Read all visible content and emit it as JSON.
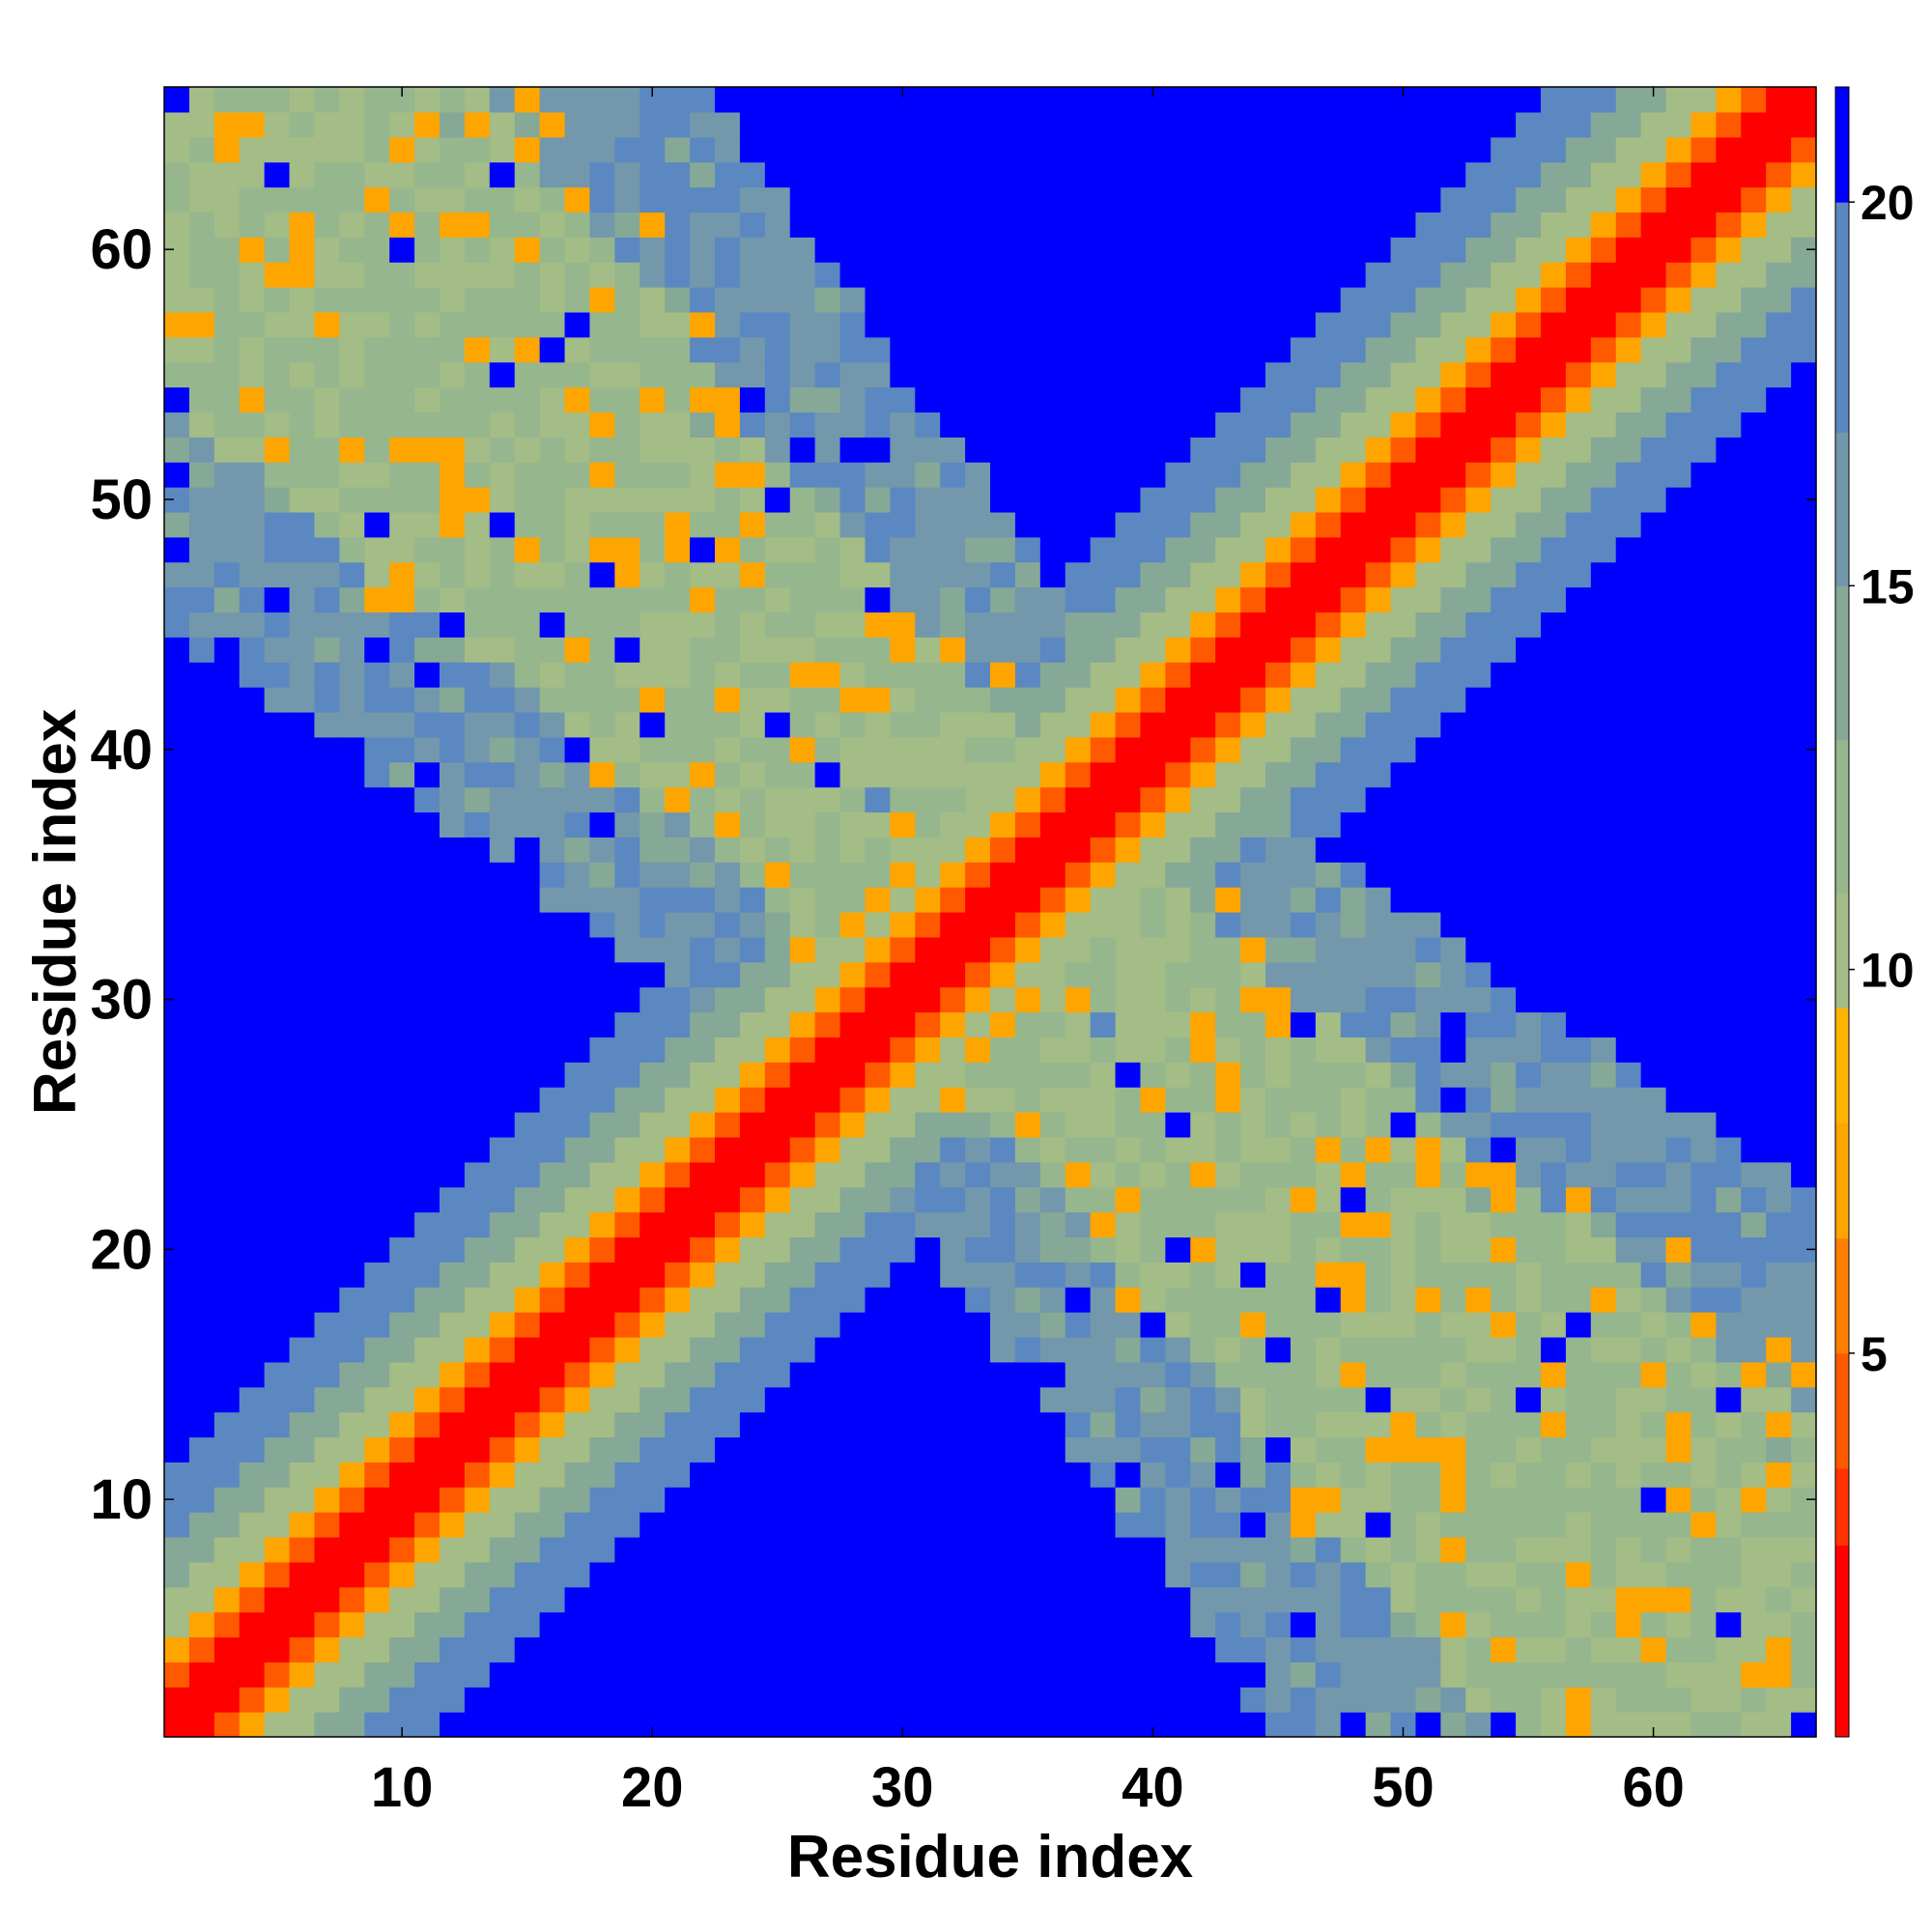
{
  "chart_data": {
    "type": "heatmap",
    "title": "",
    "xlabel": "Residue index",
    "ylabel": "Residue index",
    "n": 66,
    "xlim": [
      0.5,
      66.5
    ],
    "ylim": [
      0.5,
      66.5
    ],
    "x_ticks": [
      10,
      20,
      30,
      40,
      50,
      60
    ],
    "y_ticks": [
      10,
      20,
      30,
      40,
      50,
      60
    ],
    "colorbar": {
      "range": [
        0,
        21.5
      ],
      "ticks": [
        5,
        10,
        15,
        20
      ],
      "levels": [
        {
          "max": 2.5,
          "color": "#ff0000"
        },
        {
          "max": 3.5,
          "color": "#ff3300"
        },
        {
          "max": 5.0,
          "color": "#ff5a00"
        },
        {
          "max": 6.5,
          "color": "#ff7f00"
        },
        {
          "max": 8.0,
          "color": "#ffa500"
        },
        {
          "max": 9.5,
          "color": "#ffb400"
        },
        {
          "max": 11.0,
          "color": "#a4bc86"
        },
        {
          "max": 13.0,
          "color": "#96b68e"
        },
        {
          "max": 15.0,
          "color": "#86a896"
        },
        {
          "max": 17.0,
          "color": "#7398ac"
        },
        {
          "max": 20.0,
          "color": "#5b88c0"
        },
        {
          "max": 99.0,
          "color": "#0000ff"
        }
      ]
    },
    "description_of_values": "Symmetric residue-residue distance map; values near 0-4 on the main diagonal (red), 4-8 in the next bands (orange), 8-18 in the transition region (green to steel blue), and above 20 far from the diagonal (blue). The anti-diagonal shows an additional band of intermediate distances (8-18) with scattered close contacts (5-8).",
    "bands": [
      {
        "offset_max": 1,
        "value": 1.5
      },
      {
        "offset_max": 2,
        "value": 4.5
      },
      {
        "offset_max": 3,
        "value": 7.0
      },
      {
        "offset_max": 5,
        "value": 10.5
      },
      {
        "offset_max": 7,
        "value": 14.0
      },
      {
        "offset_max": 10,
        "value": 17.5
      }
    ],
    "antidiagonal_band": {
      "half_width": 14,
      "value_near": 11.5,
      "value_far": 16.5,
      "close_contact_value": 7.0
    }
  }
}
